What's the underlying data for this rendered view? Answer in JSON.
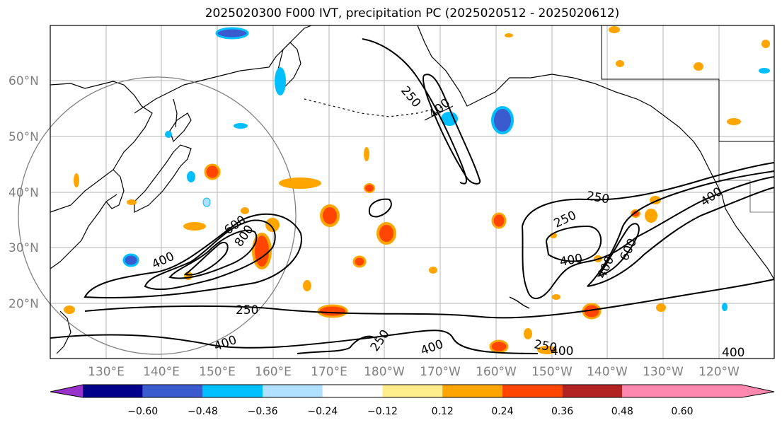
{
  "title": "2025020300 F000 IVT, precipitation PC (2025020512 - 2025020612)",
  "lat_labels": [
    "60°N",
    "50°N",
    "40°N",
    "30°N",
    "20°N"
  ],
  "lon_labels": [
    "130°E",
    "140°E",
    "150°E",
    "160°E",
    "170°E",
    "180°W",
    "170°W",
    "160°W",
    "150°W",
    "140°W",
    "130°W",
    "120°W"
  ],
  "contour_labels": [
    "250",
    "400",
    "600",
    "800",
    "400",
    "250",
    "400",
    "250",
    "400",
    "250",
    "250",
    "400",
    "400",
    "400",
    "600",
    "250",
    "400",
    "400",
    "250",
    "400"
  ],
  "colorbar": {
    "ticks": [
      "−0.60",
      "−0.48",
      "−0.36",
      "−0.24",
      "−0.12",
      "0.12",
      "0.24",
      "0.36",
      "0.48",
      "0.60"
    ],
    "colors": [
      "#9932cc",
      "#00008b",
      "#3a5bd0",
      "#00bfff",
      "#b0e0ff",
      "#ffffff",
      "#ffec8b",
      "#ffa500",
      "#ff4500",
      "#b22222",
      "#ff88b0"
    ]
  }
}
